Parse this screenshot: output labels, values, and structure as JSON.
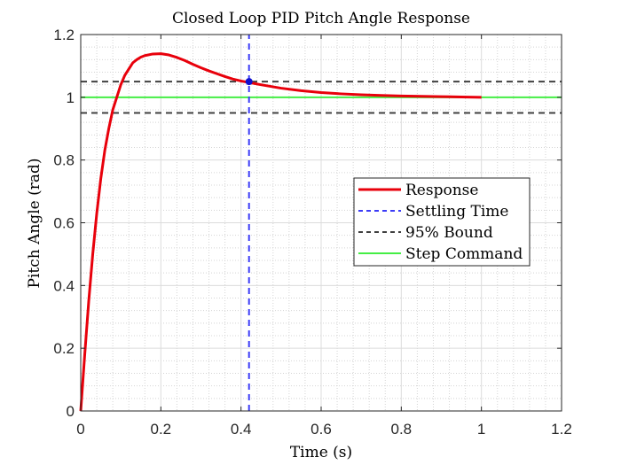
{
  "chart_data": {
    "type": "line",
    "title": "Closed Loop PID Pitch Angle Response",
    "xlabel": "Time (s)",
    "ylabel": "Pitch Angle (rad)",
    "xlim": [
      0,
      1.2
    ],
    "ylim": [
      0,
      1.2
    ],
    "xticks": [
      0,
      0.2,
      0.4,
      0.6,
      0.8,
      1.0,
      1.2
    ],
    "xtick_labels": [
      "0",
      "0.2",
      "0.4",
      "0.6",
      "0.8",
      "1",
      "1.2"
    ],
    "yticks": [
      0,
      0.2,
      0.4,
      0.6,
      0.8,
      1.0,
      1.2
    ],
    "ytick_labels": [
      "0",
      "0.2",
      "0.4",
      "0.6",
      "0.8",
      "1",
      "1.2"
    ],
    "grid": true,
    "minor_grid": true,
    "legend_position": "center-right",
    "series": [
      {
        "name": "Response",
        "color": "#e8000b",
        "style": "solid",
        "x": [
          0,
          0.01,
          0.02,
          0.03,
          0.04,
          0.05,
          0.06,
          0.07,
          0.08,
          0.09,
          0.1,
          0.11,
          0.12,
          0.13,
          0.14,
          0.15,
          0.16,
          0.18,
          0.2,
          0.22,
          0.24,
          0.26,
          0.28,
          0.3,
          0.32,
          0.34,
          0.36,
          0.38,
          0.4,
          0.42,
          0.45,
          0.5,
          0.55,
          0.6,
          0.65,
          0.7,
          0.75,
          0.8,
          0.85,
          0.9,
          0.95,
          1.0
        ],
        "y": [
          0,
          0.18,
          0.35,
          0.5,
          0.63,
          0.74,
          0.83,
          0.9,
          0.96,
          1.0,
          1.04,
          1.07,
          1.09,
          1.11,
          1.12,
          1.128,
          1.133,
          1.138,
          1.139,
          1.135,
          1.127,
          1.117,
          1.105,
          1.094,
          1.084,
          1.075,
          1.066,
          1.058,
          1.052,
          1.047,
          1.04,
          1.029,
          1.021,
          1.015,
          1.011,
          1.008,
          1.006,
          1.004,
          1.003,
          1.002,
          1.001,
          1.0
        ]
      },
      {
        "name": "Settling Time",
        "color": "#3b3bf7",
        "style": "dashed",
        "x": [
          0.42,
          0.42
        ],
        "y": [
          0,
          1.2
        ]
      },
      {
        "name": "95% Bound",
        "color": "#404040",
        "style": "dashed",
        "x": [
          0,
          1.2
        ],
        "y": [
          1.05,
          1.05
        ]
      },
      {
        "name": "Step Command",
        "color": "#44ee44",
        "style": "solid",
        "x": [
          0,
          1.2
        ],
        "y": [
          1.0,
          1.0
        ]
      }
    ],
    "extra_lines": [
      {
        "series": "95% Bound",
        "x": [
          0,
          1.2
        ],
        "y": [
          0.95,
          0.95
        ]
      }
    ],
    "markers": [
      {
        "x": 0.42,
        "y": 1.05,
        "color": "#1010d0"
      }
    ]
  }
}
